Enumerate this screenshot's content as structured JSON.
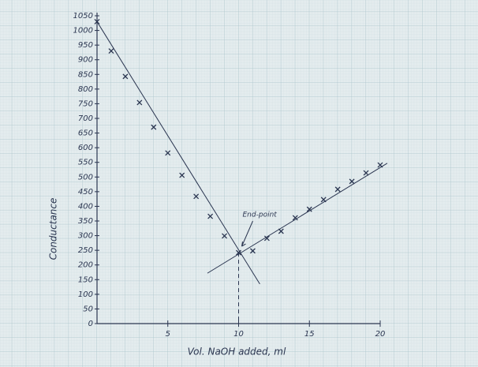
{
  "chart_data": {
    "type": "scatter",
    "xlabel": "Vol. NaOH added, ml",
    "ylabel": "Conductance",
    "annotation": "End-point",
    "endpoint_x": 10,
    "x": [
      0,
      1,
      2,
      3,
      4,
      5,
      6,
      7,
      8,
      9,
      10,
      11,
      12,
      13,
      14,
      15,
      16,
      17,
      18,
      19,
      20
    ],
    "values": [
      1030,
      930,
      843,
      754,
      670,
      582,
      506,
      434,
      366,
      299,
      242,
      248,
      291,
      315,
      361,
      390,
      423,
      458,
      485,
      514,
      541
    ],
    "color": "#2a3550",
    "fit_lines": [
      {
        "x": [
          0,
          11.5
        ],
        "y": [
          1030,
          135
        ]
      },
      {
        "x": [
          7.8,
          20.5
        ],
        "y": [
          172,
          547
        ]
      }
    ],
    "xlim": [
      0,
      20
    ],
    "ylim": [
      0,
      1050
    ],
    "xticks": [
      5,
      10,
      15,
      20
    ],
    "yticks": [
      0,
      50,
      100,
      150,
      200,
      250,
      300,
      350,
      400,
      450,
      500,
      550,
      600,
      650,
      700,
      750,
      800,
      850,
      900,
      950,
      1000,
      1050
    ],
    "grid": true
  }
}
